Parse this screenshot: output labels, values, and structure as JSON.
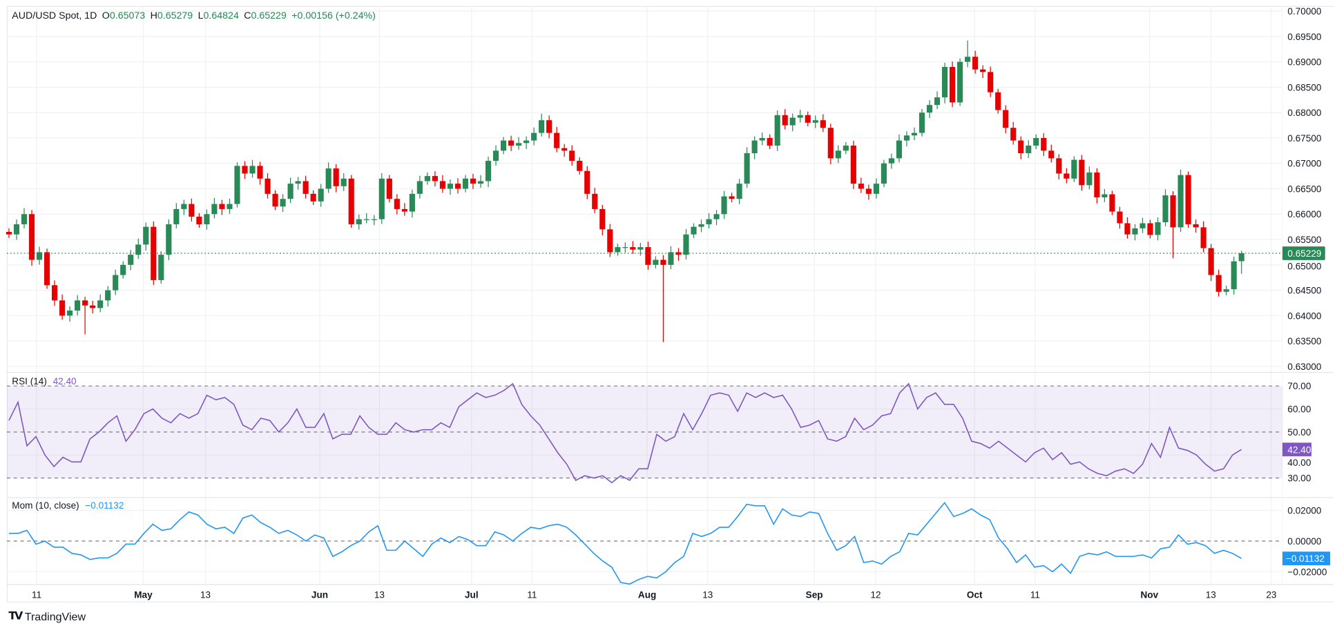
{
  "header": {
    "symbol": "AUD/USD Spot, 1D",
    "o_label": "O",
    "open": "0.65073",
    "h_label": "H",
    "high": "0.65279",
    "l_label": "L",
    "low": "0.64824",
    "c_label": "C",
    "close": "0.65229",
    "change": "+0.00156 (+0.24%)"
  },
  "colors": {
    "up": "#2a8a57",
    "down": "#e60000",
    "rsi": "#7e57c2",
    "rsi_band": "#7e57c2",
    "mom": "#2196f3",
    "grid": "#f0f1f4",
    "ohlc_text": "#22884f"
  },
  "branding": {
    "logo_mark": "TV",
    "logo_text": "TradingView"
  },
  "x_axis": {
    "labels": [
      {
        "text": "11",
        "bold": false
      },
      {
        "text": "May",
        "bold": true
      },
      {
        "text": "13",
        "bold": false
      },
      {
        "text": "Jun",
        "bold": true
      },
      {
        "text": "13",
        "bold": false
      },
      {
        "text": "Jul",
        "bold": true
      },
      {
        "text": "11",
        "bold": false
      },
      {
        "text": "Aug",
        "bold": true
      },
      {
        "text": "13",
        "bold": false
      },
      {
        "text": "Sep",
        "bold": true
      },
      {
        "text": "12",
        "bold": false
      },
      {
        "text": "Oct",
        "bold": true
      },
      {
        "text": "11",
        "bold": false
      },
      {
        "text": "Nov",
        "bold": true
      },
      {
        "text": "13",
        "bold": false
      },
      {
        "text": "23",
        "bold": false
      }
    ]
  },
  "chart_data": [
    {
      "type": "candlestick",
      "title": "AUD/USD Spot, 1D",
      "ylim": [
        0.63,
        0.7
      ],
      "y_ticks": [
        "0.70000",
        "0.69500",
        "0.69000",
        "0.68500",
        "0.68000",
        "0.67500",
        "0.67000",
        "0.66500",
        "0.66000",
        "0.65500",
        "0.65000",
        "0.64500",
        "0.64000",
        "0.63500",
        "0.63000"
      ],
      "last_price": 0.65229,
      "last_price_label": "0.65229",
      "first_open": 0.6565,
      "last_bar": {
        "open": 0.65073,
        "high": 0.65279,
        "low": 0.64824,
        "close": 0.65229
      },
      "close": [
        0.656,
        0.658,
        0.66,
        0.651,
        0.6525,
        0.646,
        0.643,
        0.64,
        0.641,
        0.643,
        0.642,
        0.6415,
        0.643,
        0.645,
        0.648,
        0.65,
        0.652,
        0.654,
        0.6575,
        0.647,
        0.652,
        0.658,
        0.661,
        0.662,
        0.6595,
        0.658,
        0.66,
        0.662,
        0.661,
        0.662,
        0.6695,
        0.668,
        0.6695,
        0.667,
        0.664,
        0.6615,
        0.663,
        0.666,
        0.6665,
        0.664,
        0.6625,
        0.665,
        0.669,
        0.6655,
        0.667,
        0.658,
        0.659,
        0.659,
        0.659,
        0.667,
        0.663,
        0.661,
        0.6605,
        0.664,
        0.6665,
        0.6675,
        0.6665,
        0.665,
        0.666,
        0.665,
        0.667,
        0.666,
        0.6665,
        0.6705,
        0.6725,
        0.6745,
        0.6735,
        0.674,
        0.6745,
        0.676,
        0.6785,
        0.676,
        0.673,
        0.6725,
        0.6705,
        0.6685,
        0.664,
        0.661,
        0.657,
        0.6525,
        0.6535,
        0.6535,
        0.653,
        0.6535,
        0.65,
        0.651,
        0.65,
        0.6525,
        0.652,
        0.656,
        0.6575,
        0.658,
        0.659,
        0.66,
        0.6635,
        0.663,
        0.666,
        0.672,
        0.6745,
        0.675,
        0.6735,
        0.6795,
        0.6775,
        0.679,
        0.6795,
        0.678,
        0.6785,
        0.677,
        0.671,
        0.6725,
        0.6735,
        0.666,
        0.665,
        0.664,
        0.666,
        0.67,
        0.671,
        0.6745,
        0.6755,
        0.676,
        0.68,
        0.6815,
        0.683,
        0.689,
        0.682,
        0.69,
        0.691,
        0.6885,
        0.688,
        0.684,
        0.6805,
        0.677,
        0.6745,
        0.672,
        0.6735,
        0.675,
        0.6725,
        0.671,
        0.668,
        0.667,
        0.6707,
        0.6657,
        0.6682,
        0.6633,
        0.6639,
        0.6605,
        0.6582,
        0.656,
        0.6572,
        0.6582,
        0.6559,
        0.6584,
        0.6637,
        0.6574,
        0.6677,
        0.658,
        0.6574,
        0.6533,
        0.648,
        0.6447,
        0.6452,
        0.6507,
        0.65229
      ],
      "wick_extremes": [
        {
          "bar": 10,
          "low": 0.6363
        },
        {
          "bar": 70,
          "high": 0.6798
        },
        {
          "bar": 86,
          "low": 0.6348
        },
        {
          "bar": 126,
          "high": 0.6942
        },
        {
          "bar": 153,
          "low": 0.6513
        }
      ]
    },
    {
      "type": "line",
      "title": "RSI (14)",
      "last_value": "42.40",
      "ylim": [
        20,
        75
      ],
      "y_ticks": [
        "70.00",
        "60.00",
        "50.00",
        "40.00",
        "30.00"
      ],
      "bands": [
        30,
        50,
        70
      ],
      "values": [
        55,
        63,
        44,
        48,
        40,
        35,
        39,
        37,
        37,
        47,
        50,
        54,
        57,
        46,
        51,
        58,
        60,
        56,
        54,
        58,
        56,
        58,
        66,
        64,
        65,
        62,
        53,
        51,
        56,
        55,
        50,
        54,
        60,
        52,
        52,
        58,
        47,
        49,
        49,
        57,
        52,
        49,
        49,
        54,
        51,
        50,
        51,
        51,
        54,
        52,
        61,
        64,
        67,
        65,
        66,
        68,
        71,
        62,
        57,
        53,
        47,
        41,
        36,
        29,
        31,
        30,
        31,
        28,
        31,
        29,
        34,
        34,
        49,
        46,
        48,
        58,
        51,
        58,
        66,
        67,
        66,
        59,
        67,
        65,
        67,
        65,
        66,
        60,
        52,
        53,
        55,
        47,
        46,
        48,
        56,
        51,
        53,
        57,
        58,
        67,
        71,
        60,
        65,
        67,
        62,
        62,
        56,
        46,
        45,
        43,
        46,
        43,
        40,
        37,
        41,
        43,
        38,
        41,
        36,
        37,
        34,
        32,
        31,
        33,
        34,
        32,
        36,
        45,
        39,
        52,
        43,
        42,
        40,
        36,
        33,
        34,
        40,
        42.4
      ]
    },
    {
      "type": "line",
      "title": "Mom (10, close)",
      "last_value": "−0.01132",
      "ylim": [
        -0.03,
        0.028
      ],
      "y_ticks": [
        "0.02000",
        "0.00000",
        "−0.02000"
      ],
      "values": [
        0.005,
        0.005,
        0.007,
        -0.002,
        0.0,
        -0.004,
        -0.004,
        -0.008,
        -0.009,
        -0.012,
        -0.011,
        -0.011,
        -0.008,
        -0.002,
        -0.002,
        0.005,
        0.011,
        0.007,
        0.008,
        0.014,
        0.019,
        0.017,
        0.011,
        0.008,
        0.009,
        0.005,
        0.015,
        0.017,
        0.012,
        0.009,
        0.005,
        0.007,
        0.004,
        0.0,
        0.004,
        0.002,
        -0.01,
        -0.007,
        -0.003,
        0.0,
        0.006,
        0.01,
        -0.006,
        -0.006,
        0.0,
        -0.005,
        -0.01,
        -0.002,
        0.002,
        -0.001,
        0.003,
        0.001,
        -0.003,
        -0.003,
        0.006,
        0.004,
        0.0,
        0.005,
        0.009,
        0.008,
        0.01,
        0.011,
        0.009,
        0.004,
        -0.002,
        -0.008,
        -0.013,
        -0.017,
        -0.027,
        -0.028,
        -0.025,
        -0.023,
        -0.024,
        -0.02,
        -0.014,
        -0.01,
        0.005,
        0.003,
        0.005,
        0.009,
        0.009,
        0.016,
        0.024,
        0.023,
        0.023,
        0.011,
        0.021,
        0.017,
        0.016,
        0.019,
        0.018,
        0.005,
        -0.006,
        -0.003,
        0.003,
        -0.014,
        -0.013,
        -0.015,
        -0.01,
        -0.007,
        0.005,
        0.004,
        0.011,
        0.018,
        0.025,
        0.016,
        0.018,
        0.021,
        0.017,
        0.014,
        0.002,
        -0.005,
        -0.014,
        -0.009,
        -0.017,
        -0.016,
        -0.02,
        -0.015,
        -0.021,
        -0.01,
        -0.008,
        -0.009,
        -0.007,
        -0.01,
        -0.01,
        -0.01,
        -0.009,
        -0.011,
        -0.005,
        -0.004,
        0.004,
        -0.002,
        -0.001,
        -0.003,
        -0.008,
        -0.006,
        -0.008,
        -0.01132
      ]
    }
  ]
}
